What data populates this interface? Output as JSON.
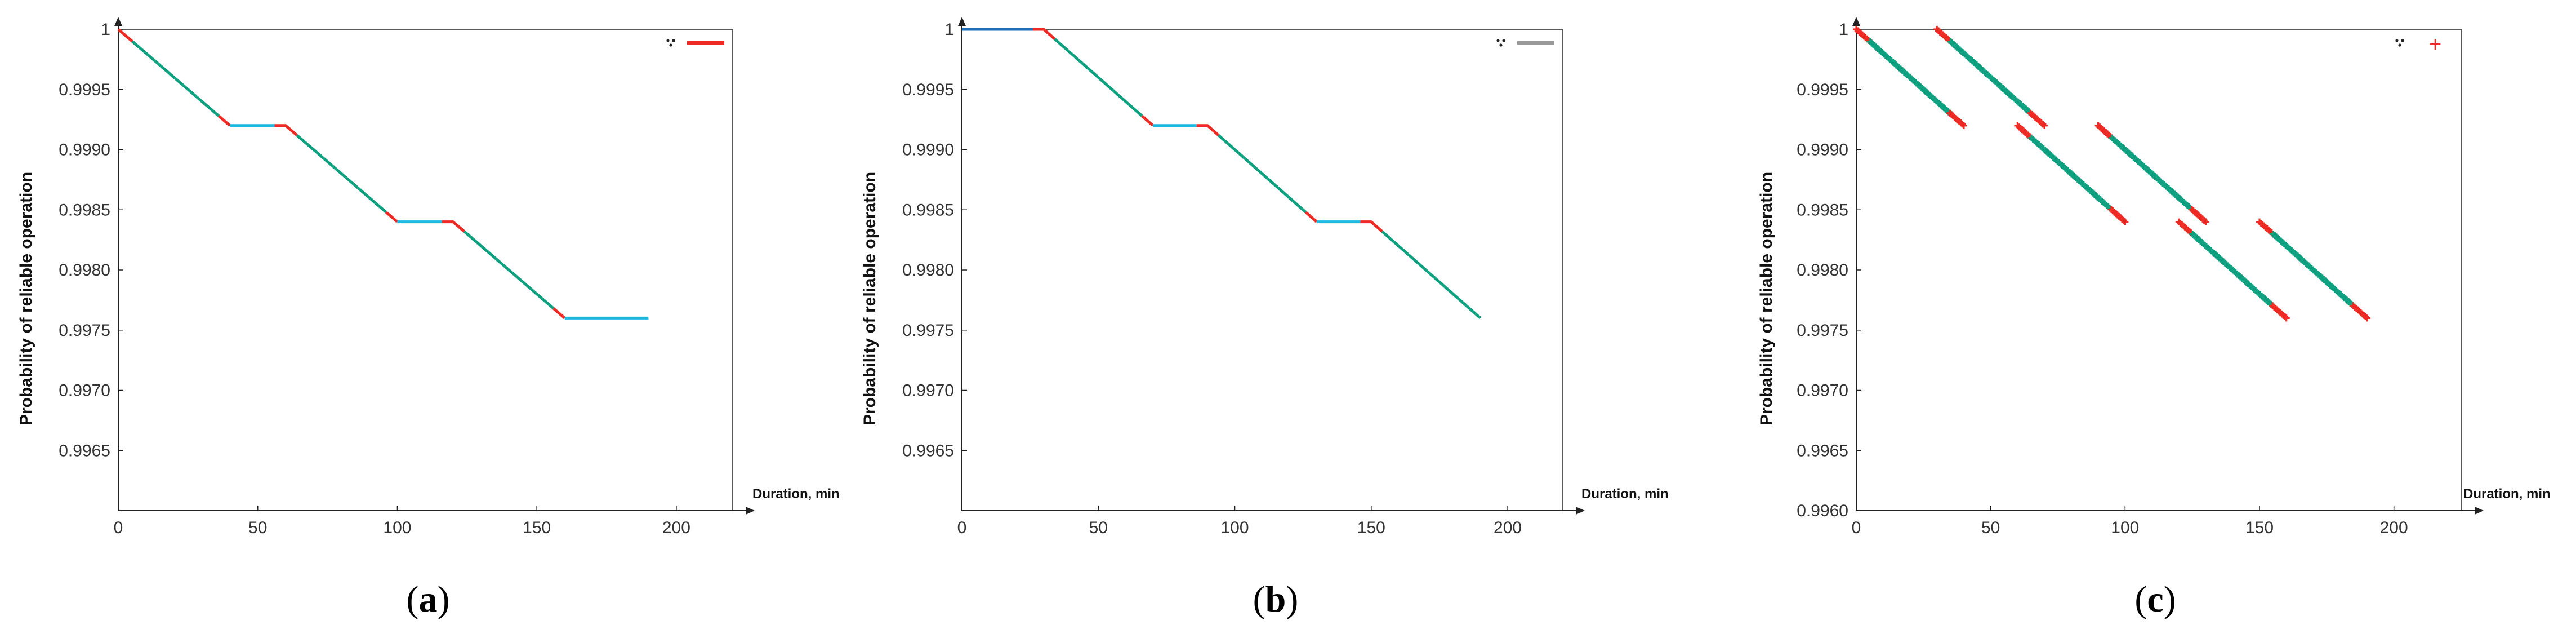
{
  "colors": {
    "red": "#ee2a24",
    "green": "#0fa080",
    "cyan": "#1fb8e2",
    "blue": "#1f6fb8",
    "gray": "#9a9a9a",
    "frame": "#222222",
    "grid": "#b8b8b8"
  },
  "chart_data": [
    {
      "type": "line",
      "panel_label": "a",
      "xlabel": "Duration, min",
      "ylabel": "Probability of reliable operation",
      "xlim": [
        0,
        220
      ],
      "ylim": [
        0.996,
        1.0
      ],
      "x_ticks": [
        "0",
        "50",
        "100",
        "150",
        "200"
      ],
      "y_ticks": [
        "1",
        "0.9995",
        "0.9990",
        "0.9985",
        "0.9980",
        "0.9975",
        "0.9970",
        "0.9965"
      ],
      "legend": {
        "position": "top-right",
        "entries": [
          {
            "marker": "dots",
            "color": "#222222"
          },
          {
            "marker": "line",
            "color": "#ee2a24"
          }
        ]
      },
      "segments": [
        {
          "color": "red",
          "points": [
            [
              0,
              1.0
            ],
            [
              5,
              0.9999
            ]
          ]
        },
        {
          "color": "green",
          "points": [
            [
              5,
              0.9999
            ],
            [
              36,
              0.99928
            ]
          ]
        },
        {
          "color": "red",
          "points": [
            [
              36,
              0.99928
            ],
            [
              40,
              0.9992
            ]
          ]
        },
        {
          "color": "cyan",
          "points": [
            [
              40,
              0.9992
            ],
            [
              56,
              0.9992
            ]
          ]
        },
        {
          "color": "red",
          "points": [
            [
              56,
              0.9992
            ],
            [
              60,
              0.9992
            ],
            [
              64,
              0.99912
            ]
          ]
        },
        {
          "color": "green",
          "points": [
            [
              64,
              0.99912
            ],
            [
              96,
              0.99848
            ]
          ]
        },
        {
          "color": "red",
          "points": [
            [
              96,
              0.99848
            ],
            [
              100,
              0.9984
            ]
          ]
        },
        {
          "color": "cyan",
          "points": [
            [
              100,
              0.9984
            ],
            [
              116,
              0.9984
            ]
          ]
        },
        {
          "color": "red",
          "points": [
            [
              116,
              0.9984
            ],
            [
              120,
              0.9984
            ],
            [
              124,
              0.99832
            ]
          ]
        },
        {
          "color": "green",
          "points": [
            [
              124,
              0.99832
            ],
            [
              156,
              0.99768
            ]
          ]
        },
        {
          "color": "red",
          "points": [
            [
              156,
              0.99768
            ],
            [
              160,
              0.9976
            ]
          ]
        },
        {
          "color": "cyan",
          "points": [
            [
              160,
              0.9976
            ],
            [
              190,
              0.9976
            ]
          ]
        }
      ]
    },
    {
      "type": "line",
      "panel_label": "b",
      "xlabel": "Duration, min",
      "ylabel": "Probability of reliable operation",
      "xlim": [
        0,
        220
      ],
      "ylim": [
        0.996,
        1.0
      ],
      "x_ticks": [
        "0",
        "50",
        "100",
        "150",
        "200"
      ],
      "y_ticks": [
        "1",
        "0.9995",
        "0.9990",
        "0.9985",
        "0.9980",
        "0.9975",
        "0.9970",
        "0.9965"
      ],
      "legend": {
        "position": "top-right",
        "entries": [
          {
            "marker": "dots",
            "color": "#222222"
          },
          {
            "marker": "line",
            "color": "#9a9a9a"
          }
        ]
      },
      "segments": [
        {
          "color": "blue",
          "points": [
            [
              0,
              1.0
            ],
            [
              26,
              1.0
            ]
          ]
        },
        {
          "color": "red",
          "points": [
            [
              26,
              1.0
            ],
            [
              30,
              1.0
            ],
            [
              34,
              0.99992
            ]
          ]
        },
        {
          "color": "green",
          "points": [
            [
              34,
              0.99992
            ],
            [
              66,
              0.99928
            ]
          ]
        },
        {
          "color": "red",
          "points": [
            [
              66,
              0.99928
            ],
            [
              70,
              0.9992
            ]
          ]
        },
        {
          "color": "cyan",
          "points": [
            [
              70,
              0.9992
            ],
            [
              86,
              0.9992
            ]
          ]
        },
        {
          "color": "red",
          "points": [
            [
              86,
              0.9992
            ],
            [
              90,
              0.9992
            ],
            [
              94,
              0.99912
            ]
          ]
        },
        {
          "color": "green",
          "points": [
            [
              94,
              0.99912
            ],
            [
              126,
              0.99848
            ]
          ]
        },
        {
          "color": "red",
          "points": [
            [
              126,
              0.99848
            ],
            [
              130,
              0.9984
            ]
          ]
        },
        {
          "color": "cyan",
          "points": [
            [
              130,
              0.9984
            ],
            [
              146,
              0.9984
            ]
          ]
        },
        {
          "color": "red",
          "points": [
            [
              146,
              0.9984
            ],
            [
              150,
              0.9984
            ],
            [
              154,
              0.99832
            ]
          ]
        },
        {
          "color": "green",
          "points": [
            [
              154,
              0.99832
            ],
            [
              190,
              0.9976
            ]
          ]
        }
      ]
    },
    {
      "type": "scatter",
      "panel_label": "c",
      "xlabel": "Duration, min",
      "ylabel": "Probability of reliable operation",
      "xlim": [
        0,
        225
      ],
      "ylim": [
        0.996,
        1.0
      ],
      "x_ticks": [
        "0",
        "50",
        "100",
        "150",
        "200"
      ],
      "y_ticks": [
        "1",
        "0.9995",
        "0.9990",
        "0.9985",
        "0.9980",
        "0.9975",
        "0.9970",
        "0.9965",
        "0.9960"
      ],
      "legend": {
        "position": "top-right",
        "entries": [
          {
            "marker": "dots",
            "color": "#222222"
          },
          {
            "marker": "plus",
            "color": "#ee2a24"
          }
        ]
      },
      "tracks": [
        {
          "x0": 0,
          "y0": 1.0,
          "x1": 40,
          "y1": 0.9992
        },
        {
          "x0": 30,
          "y0": 1.0,
          "x1": 70,
          "y1": 0.9992
        },
        {
          "x0": 60,
          "y0": 0.9992,
          "x1": 100,
          "y1": 0.9984
        },
        {
          "x0": 90,
          "y0": 0.9992,
          "x1": 130,
          "y1": 0.9984
        },
        {
          "x0": 120,
          "y0": 0.9984,
          "x1": 160,
          "y1": 0.9976
        },
        {
          "x0": 150,
          "y0": 0.9984,
          "x1": 190,
          "y1": 0.9976
        }
      ]
    }
  ]
}
